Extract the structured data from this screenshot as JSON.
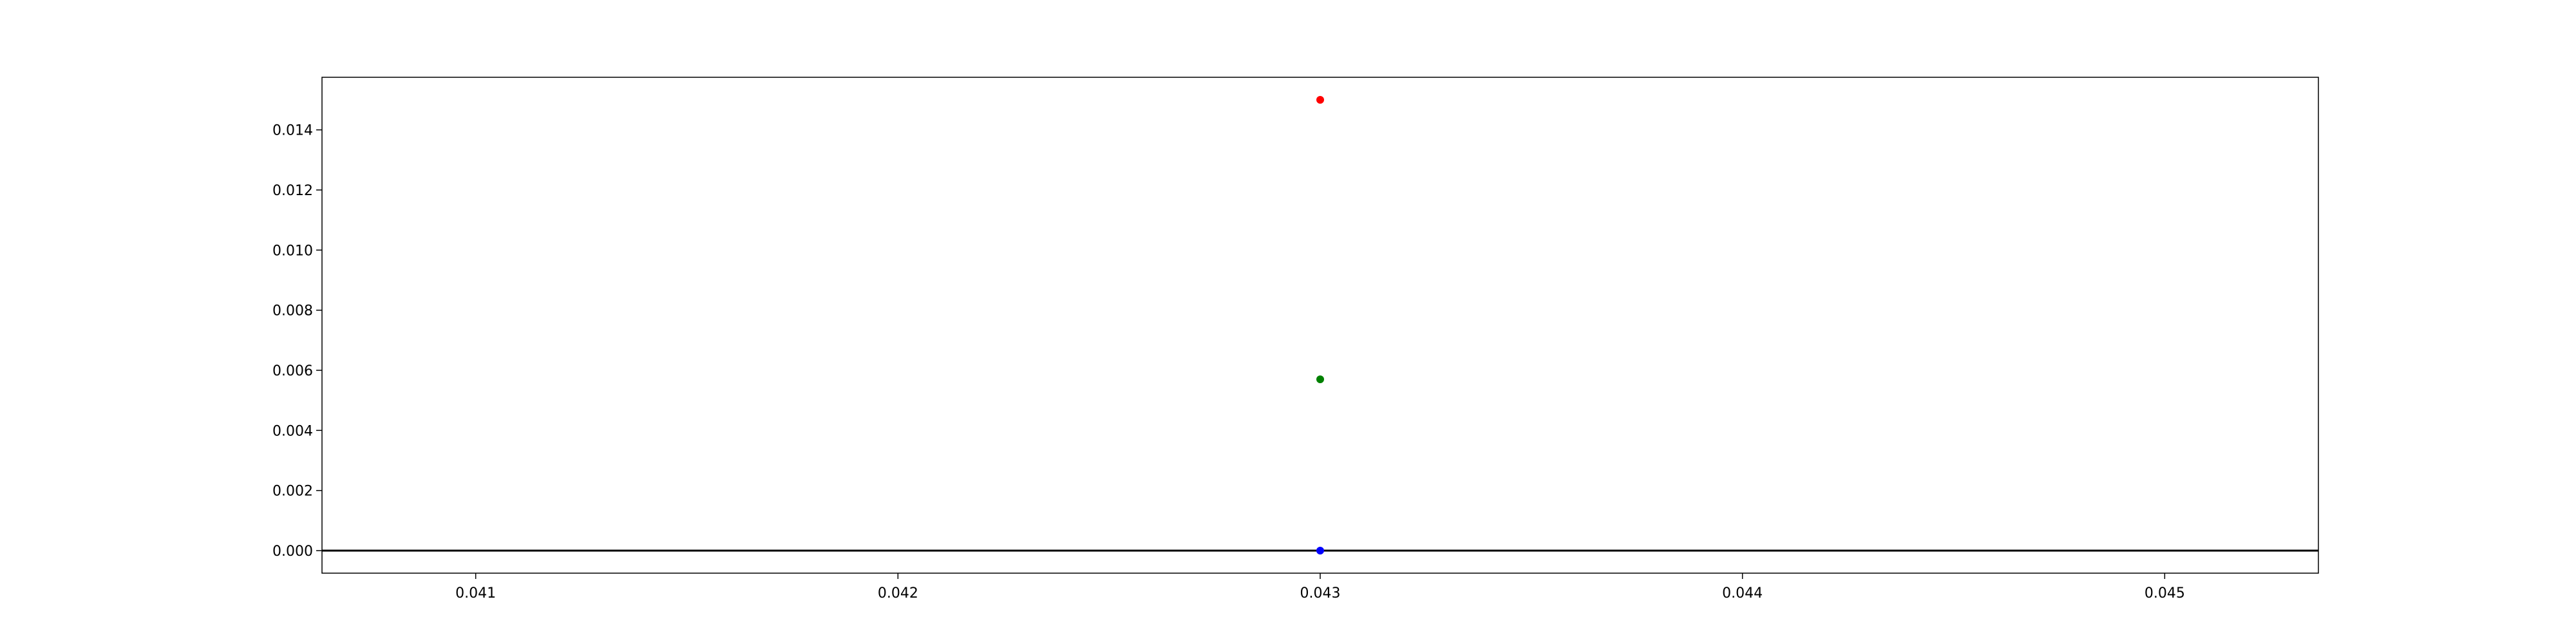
{
  "chart_data": {
    "type": "scatter",
    "title": "",
    "xlabel": "",
    "ylabel": "",
    "xlim": [
      0.040636,
      0.045364
    ],
    "ylim": [
      -0.00075,
      0.01575
    ],
    "x_ticks": [
      0.041,
      0.042,
      0.043,
      0.044,
      0.045
    ],
    "x_tick_labels": [
      "0.041",
      "0.042",
      "0.043",
      "0.044",
      "0.045"
    ],
    "y_ticks": [
      0.0,
      0.002,
      0.004,
      0.006,
      0.008,
      0.01,
      0.012,
      0.014
    ],
    "y_tick_labels": [
      "0.000",
      "0.002",
      "0.004",
      "0.006",
      "0.008",
      "0.010",
      "0.012",
      "0.014"
    ],
    "grid": false,
    "horizontal_line": {
      "y": 0.0,
      "color": "#000000"
    },
    "points": [
      {
        "x": 0.043,
        "y": 0.015,
        "color": "#ff0000"
      },
      {
        "x": 0.043,
        "y": 0.0057,
        "color": "#008000"
      },
      {
        "x": 0.043,
        "y": 0.0,
        "color": "#0000ff"
      }
    ]
  }
}
